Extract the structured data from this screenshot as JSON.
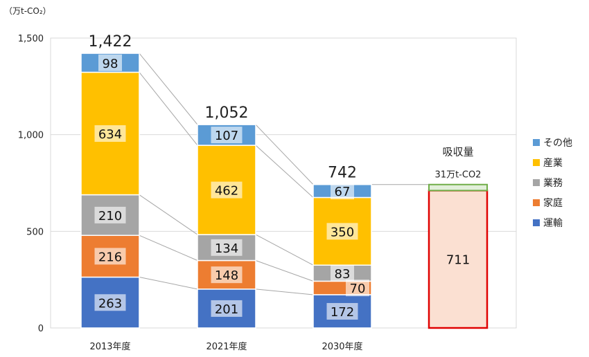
{
  "chart_data": {
    "type": "bar",
    "stacked": true,
    "unit_label": "（万t-CO₂）",
    "ylim": [
      0,
      1500
    ],
    "yticks": [
      "0",
      "500",
      "1,000",
      "1,500"
    ],
    "ytick_values": [
      0,
      500,
      1000,
      1500
    ],
    "grid": true,
    "categories": [
      "2013年度",
      "2021年度",
      "2030年度"
    ],
    "totals": [
      "1,422",
      "1,052",
      "742"
    ],
    "series": [
      {
        "name": "運輸",
        "color": "#4472c4",
        "values": [
          263,
          201,
          172
        ]
      },
      {
        "name": "家庭",
        "color": "#ed7d31",
        "values": [
          216,
          148,
          70
        ]
      },
      {
        "name": "業務",
        "color": "#a5a5a5",
        "values": [
          210,
          134,
          83
        ]
      },
      {
        "name": "産業",
        "color": "#ffc000",
        "values": [
          634,
          462,
          350
        ]
      },
      {
        "name": "その他",
        "color": "#5b9bd5",
        "values": [
          98,
          107,
          67
        ]
      }
    ],
    "legend_order": [
      "その他",
      "産業",
      "業務",
      "家庭",
      "運輸"
    ],
    "legend_position": "right",
    "absorption": {
      "title": "吸収量",
      "small_label": "31万t-CO2",
      "small_value": 31,
      "main_value": 711,
      "fill_color": "#fbe0d2",
      "border_color": "#e00000",
      "small_fill_color": "#e2efda",
      "small_border_color": "#70ad47"
    }
  }
}
